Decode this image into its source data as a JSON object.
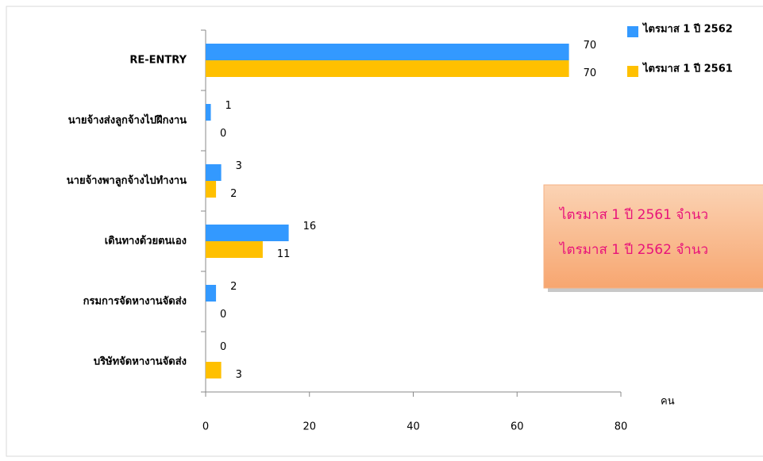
{
  "chart_data": {
    "type": "hbar",
    "categories": [
      "RE-ENTRY",
      "นายจ้างส่งลูกจ้างไปฝึกงาน",
      "นายจ้างพาลูกจ้างไปทำงาน",
      "เดินทางด้วยตนเอง",
      "กรมการจัดหางานจัดส่ง",
      "บริษัทจัดหางานจัดส่ง"
    ],
    "series": [
      {
        "name": "ไตรมาส 1 ปี 2562",
        "color": "#3399ff",
        "values": [
          70,
          1,
          3,
          16,
          2,
          0
        ]
      },
      {
        "name": "ไตรมาส 1  ปี 2561",
        "color": "#ffc000",
        "values": [
          70,
          0,
          2,
          11,
          0,
          3
        ]
      }
    ],
    "x_label": "คน",
    "xlim": [
      0,
      80
    ],
    "xticks": [
      0,
      20,
      40,
      60,
      80
    ],
    "annotations": [
      "ไตรมาส 1 ปี 2561 จำนว",
      "ไตรมาส 1 ปี 2562 จำนว"
    ],
    "legend": "top-right"
  }
}
